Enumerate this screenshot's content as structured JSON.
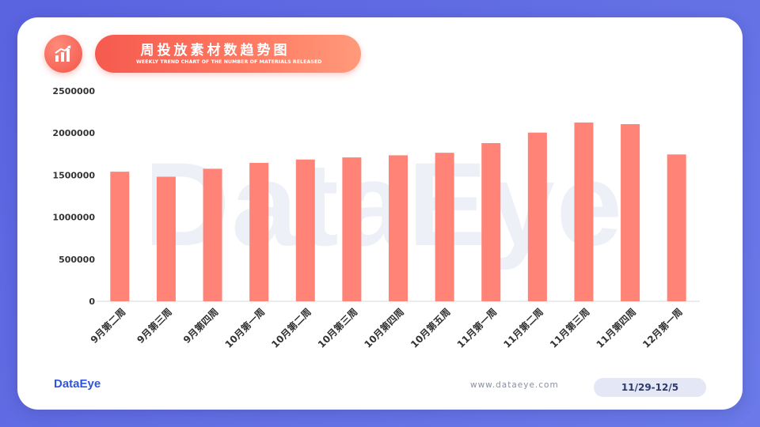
{
  "header": {
    "title": "周投放素材数趋势图",
    "subtitle": "WEEKLY TREND CHART OF THE NUMBER OF MATERIALS RELEASED",
    "icon": "chart-growth-icon"
  },
  "watermark": "DataEye",
  "footer": {
    "logo": "DataEye",
    "url": "www.dataeye.com",
    "date_range": "11/29-12/5"
  },
  "colors": {
    "bar": "#ff8376",
    "accent": "#f55a4e",
    "background": "#5a63e0"
  },
  "chart_data": {
    "type": "bar",
    "title": "周投放素材数趋势图",
    "categories": [
      "9月第二周",
      "9月第三周",
      "9月第四周",
      "10月第一周",
      "10月第二周",
      "10月第三周",
      "10月第四周",
      "10月第五周",
      "11月第一周",
      "11月第二周",
      "11月第三周",
      "11月第四周",
      "12月第一周"
    ],
    "values": [
      1540000,
      1480000,
      1575000,
      1645000,
      1685000,
      1710000,
      1735000,
      1765000,
      1880000,
      2005000,
      2125000,
      2105000,
      1745000
    ],
    "yticks": [
      0,
      500000,
      1000000,
      1500000,
      2000000,
      2500000
    ],
    "ylim": [
      0,
      2500000
    ],
    "grid": false,
    "legend": "none"
  }
}
